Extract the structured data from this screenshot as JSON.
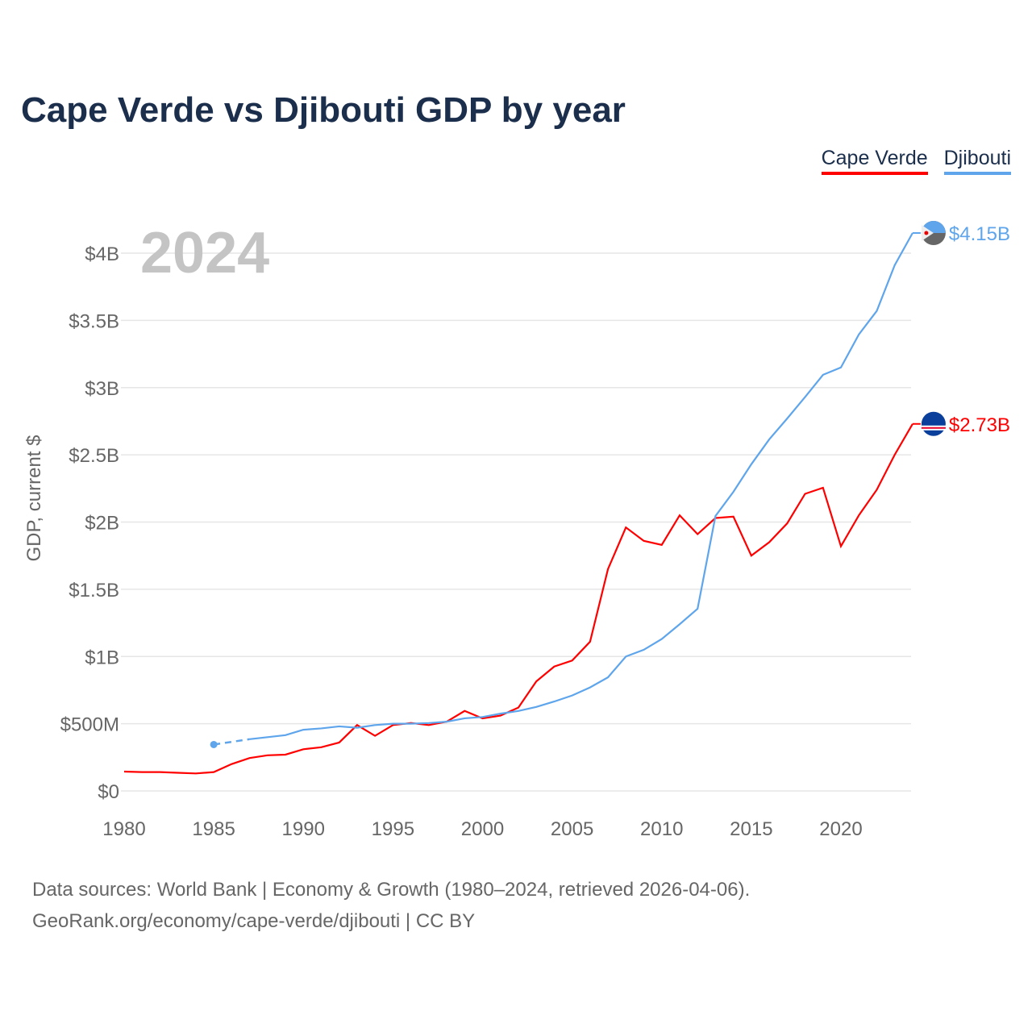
{
  "chart_data": {
    "type": "line",
    "title": "Cape Verde vs Djibouti GDP by year",
    "ylabel": "GDP, current $",
    "xlabel": "",
    "year_label": "2024",
    "xlim": [
      1980,
      2024
    ],
    "ylim": [
      0,
      4.3
    ],
    "grid": true,
    "legend_placement": "top-right",
    "x_ticks": [
      1980,
      1985,
      1990,
      1995,
      2000,
      2005,
      2010,
      2015,
      2020
    ],
    "x_tick_labels": [
      "1980",
      "1985",
      "1990",
      "1995",
      "2000",
      "2005",
      "2010",
      "2015",
      "2020"
    ],
    "y_ticks": [
      0,
      0.5,
      1,
      1.5,
      2,
      2.5,
      3,
      3.5,
      4
    ],
    "y_tick_labels": [
      "$0",
      "$500M",
      "$1B",
      "$1.5B",
      "$2B",
      "$2.5B",
      "$3B",
      "$3.5B",
      "$4B"
    ],
    "series": [
      {
        "name": "Cape Verde",
        "color": "#ff0000",
        "end_label": "$2.73B",
        "flag": "cape-verde-flag",
        "x": [
          1980,
          1981,
          1982,
          1983,
          1984,
          1985,
          1986,
          1987,
          1988,
          1989,
          1990,
          1991,
          1992,
          1993,
          1994,
          1995,
          1996,
          1997,
          1998,
          1999,
          2000,
          2001,
          2002,
          2003,
          2004,
          2005,
          2006,
          2007,
          2008,
          2009,
          2010,
          2011,
          2012,
          2013,
          2014,
          2015,
          2016,
          2017,
          2018,
          2019,
          2020,
          2021,
          2022,
          2023,
          2024
        ],
        "values": [
          0.144,
          0.14,
          0.14,
          0.135,
          0.13,
          0.14,
          0.2,
          0.245,
          0.265,
          0.27,
          0.31,
          0.325,
          0.36,
          0.49,
          0.41,
          0.49,
          0.505,
          0.49,
          0.515,
          0.595,
          0.54,
          0.56,
          0.62,
          0.815,
          0.925,
          0.97,
          1.11,
          1.65,
          1.96,
          1.86,
          1.83,
          2.05,
          1.91,
          2.03,
          2.04,
          1.75,
          1.85,
          1.99,
          2.21,
          2.255,
          1.82,
          2.05,
          2.24,
          2.5,
          2.73
        ]
      },
      {
        "name": "Djibouti",
        "color": "#5ea5ec",
        "end_label": "$4.15B",
        "flag": "djibouti-flag",
        "x": [
          1985,
          1987,
          1988,
          1989,
          1990,
          1991,
          1992,
          1993,
          1994,
          1995,
          1996,
          1997,
          1998,
          1999,
          2000,
          2001,
          2002,
          2003,
          2004,
          2005,
          2006,
          2007,
          2008,
          2009,
          2010,
          2011,
          2012,
          2013,
          2014,
          2015,
          2016,
          2017,
          2018,
          2019,
          2020,
          2021,
          2022,
          2023,
          2024
        ],
        "values": [
          0.345,
          0.385,
          0.4,
          0.415,
          0.455,
          0.465,
          0.48,
          0.47,
          0.49,
          0.5,
          0.5,
          0.505,
          0.515,
          0.54,
          0.55,
          0.575,
          0.595,
          0.625,
          0.665,
          0.71,
          0.77,
          0.845,
          1.0,
          1.05,
          1.13,
          1.24,
          1.355,
          2.045,
          2.225,
          2.43,
          2.615,
          2.77,
          2.93,
          3.095,
          3.15,
          3.395,
          3.57,
          3.91,
          4.15
        ]
      }
    ]
  },
  "footer": {
    "line1": "Data sources: World Bank | Economy & Growth (1980–2024, retrieved 2026-04-06).",
    "line2": "GeoRank.org/economy/cape-verde/djibouti | CC BY"
  }
}
